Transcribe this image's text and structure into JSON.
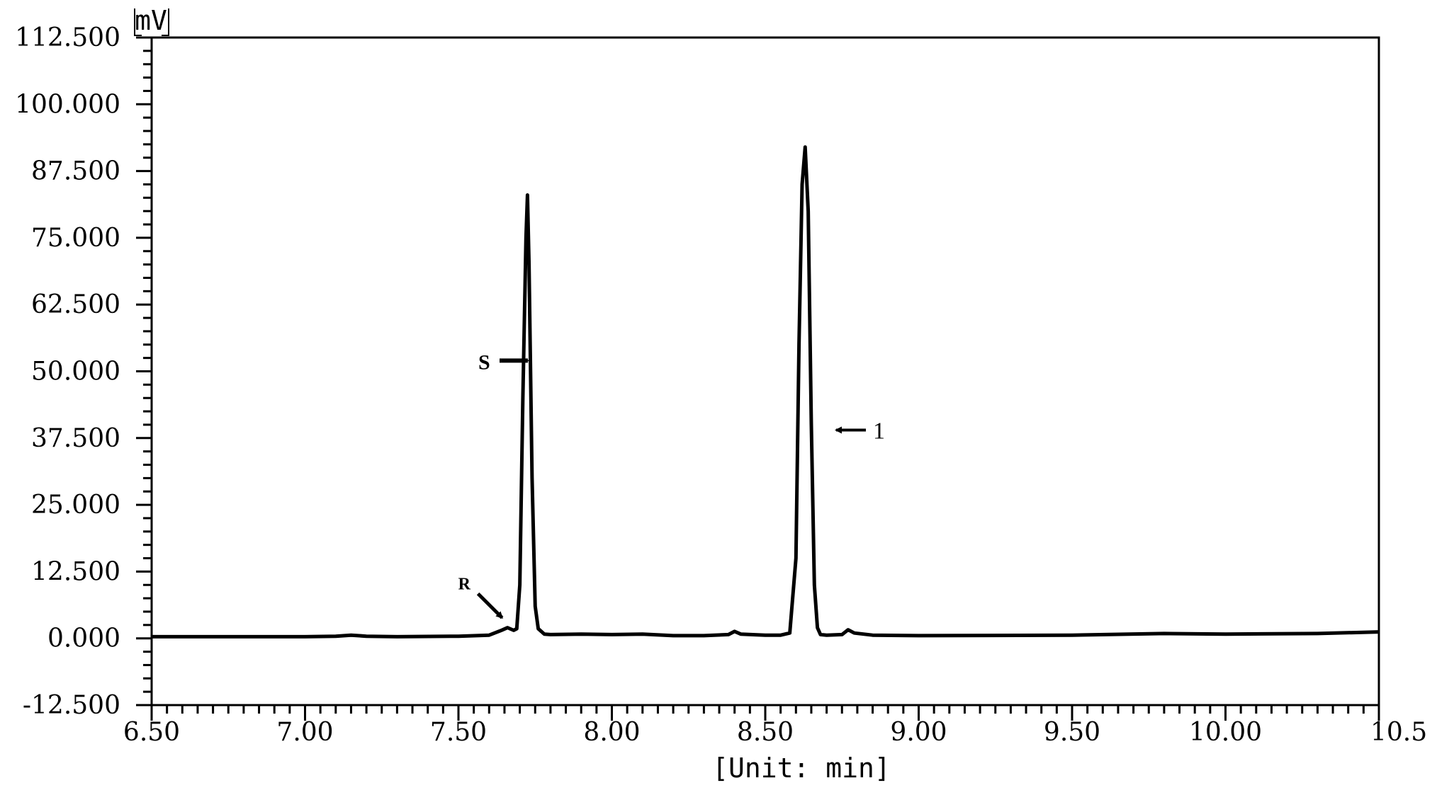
{
  "chart_data": {
    "type": "line",
    "ylabel": "mV",
    "xlabel": "[Unit: min]",
    "xlim": [
      6.5,
      10.5
    ],
    "ylim": [
      -12.5,
      112.5
    ],
    "x_ticks": [
      6.5,
      7.0,
      7.5,
      8.0,
      8.5,
      9.0,
      9.5,
      10.0,
      10.5
    ],
    "x_tick_labels": [
      "6.50",
      "7.00",
      "7.50",
      "8.00",
      "8.50",
      "9.00",
      "9.50",
      "10.00",
      "10.5"
    ],
    "y_ticks": [
      -12.5,
      0,
      12.5,
      25,
      37.5,
      50,
      62.5,
      75,
      87.5,
      100,
      112.5
    ],
    "y_tick_labels": [
      "-12.500",
      "0.000",
      "12.500",
      "25.000",
      "37.500",
      "50.000",
      "62.500",
      "75.000",
      "87.500",
      "100.000",
      "112.500"
    ],
    "grid": false,
    "series": [
      {
        "x": [
          6.5,
          7.0,
          7.1,
          7.15,
          7.2,
          7.3,
          7.5,
          7.6,
          7.64,
          7.66,
          7.68,
          7.69,
          7.7,
          7.71,
          7.72,
          7.725,
          7.73,
          7.74,
          7.75,
          7.76,
          7.78,
          7.8,
          7.9,
          8.0,
          8.1,
          8.2,
          8.3,
          8.38,
          8.4,
          8.42,
          8.5,
          8.55,
          8.58,
          8.6,
          8.61,
          8.62,
          8.63,
          8.64,
          8.65,
          8.66,
          8.67,
          8.68,
          8.7,
          8.75,
          8.77,
          8.79,
          8.85,
          9.0,
          9.5,
          9.8,
          10.0,
          10.3,
          10.5
        ],
        "y": [
          0.3,
          0.3,
          0.4,
          0.6,
          0.4,
          0.3,
          0.4,
          0.6,
          1.5,
          2.0,
          1.5,
          1.8,
          10,
          45,
          75,
          83,
          70,
          30,
          6,
          1.8,
          0.8,
          0.7,
          0.8,
          0.7,
          0.8,
          0.5,
          0.5,
          0.7,
          1.3,
          0.8,
          0.6,
          0.6,
          1.0,
          15,
          55,
          85,
          92,
          80,
          40,
          10,
          2.0,
          0.7,
          0.6,
          0.7,
          1.6,
          1.0,
          0.6,
          0.5,
          0.6,
          0.9,
          0.8,
          0.9,
          1.2
        ]
      }
    ],
    "annotations": [
      {
        "label": "S",
        "x": 7.72,
        "y": 52
      },
      {
        "label": "R",
        "x": 7.67,
        "y": 2
      },
      {
        "label": "1",
        "x": 8.64,
        "y": 39
      }
    ]
  }
}
